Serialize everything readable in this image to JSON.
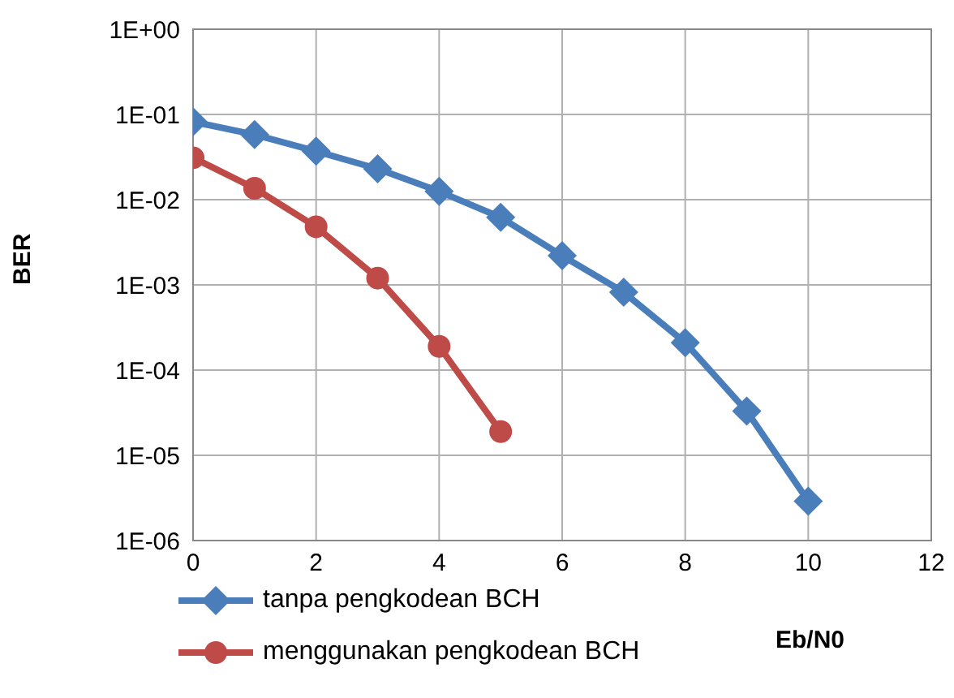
{
  "chart_data": {
    "type": "line",
    "xlabel": "Eb/N0",
    "ylabel": "BER",
    "log": "y",
    "grid": true,
    "legend": "bottom",
    "x": [
      0,
      1,
      2,
      3,
      4,
      5,
      6,
      7,
      8,
      9,
      10
    ],
    "xlim": [
      0,
      12
    ],
    "xticks": [
      0,
      2,
      4,
      6,
      8,
      10,
      12
    ],
    "ylim": [
      1e-06,
      1
    ],
    "yticks": [
      {
        "value": 1e-06,
        "label": "1E-06"
      },
      {
        "value": 1e-05,
        "label": "1E-05"
      },
      {
        "value": 0.0001,
        "label": "1E-04"
      },
      {
        "value": 0.001,
        "label": "1E-03"
      },
      {
        "value": 0.01,
        "label": "1E-02"
      },
      {
        "value": 0.1,
        "label": "1E-01"
      },
      {
        "value": 1,
        "label": "1E+00"
      }
    ],
    "series": [
      {
        "name": "tanpa pengkodean BCH",
        "color": "#4a7ebb",
        "marker": "diamond",
        "values": [
          0.082,
          0.058,
          0.037,
          0.023,
          0.0125,
          0.0062,
          0.0022,
          0.00082,
          0.00021,
          3.3e-05,
          2.9e-06
        ]
      },
      {
        "name": "menggunakan pengkodean BCH",
        "color": "#be4b48",
        "marker": "circle",
        "x": [
          0,
          1,
          2,
          3,
          4,
          5
        ],
        "values": [
          0.031,
          0.0136,
          0.0048,
          0.0012,
          0.00019,
          1.9e-05
        ]
      }
    ]
  }
}
